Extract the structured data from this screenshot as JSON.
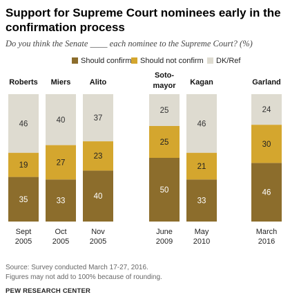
{
  "header": {
    "title": "Support for Supreme Court nominees early in the confirmation process",
    "subtitle": "Do you think the Senate ____ each nominee to the Supreme Court? (%)"
  },
  "footer": {
    "source": "Source: Survey conducted March 17-27, 2016.",
    "note": "Figures may not add to 100% because of rounding.",
    "org": "PEW RESEARCH CENTER"
  },
  "chart_data": {
    "type": "bar",
    "stacked": true,
    "ylim": [
      0,
      100
    ],
    "categories": [
      {
        "nominee": [
          "Roberts"
        ],
        "date": [
          "Sept",
          "2005"
        ]
      },
      {
        "nominee": [
          "Miers"
        ],
        "date": [
          "Oct",
          "2005"
        ]
      },
      {
        "nominee": [
          "Alito"
        ],
        "date": [
          "Nov",
          "2005"
        ]
      },
      {
        "nominee": [
          "Soto-",
          "mayor"
        ],
        "date": [
          "June",
          "2009"
        ]
      },
      {
        "nominee": [
          "Kagan"
        ],
        "date": [
          "May",
          "2010"
        ]
      },
      {
        "nominee": [
          "Garland"
        ],
        "date": [
          "March",
          "2016"
        ]
      }
    ],
    "series": [
      {
        "name": "Should confirm",
        "color": "#8c6d2c",
        "label_color": "#ffffff",
        "values": [
          35,
          33,
          40,
          50,
          33,
          46
        ]
      },
      {
        "name": "Should not confirm",
        "color": "#d4a62e",
        "label_color": "#222222",
        "values": [
          19,
          27,
          23,
          25,
          21,
          30
        ]
      },
      {
        "name": "DK/Ref",
        "color": "#dedbd0",
        "label_color": "#333333",
        "values": [
          46,
          40,
          37,
          25,
          46,
          24
        ]
      }
    ],
    "legend": "top"
  }
}
